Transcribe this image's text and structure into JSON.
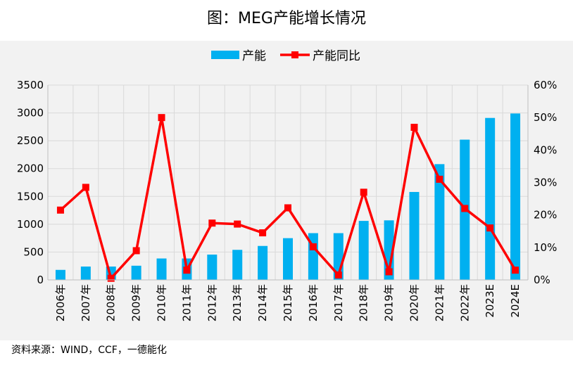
{
  "title": "图：MEG产能增长情况",
  "source": "资料来源：WIND，CCF，一德能化",
  "colors": {
    "bar": "#00b0f0",
    "line": "#ff0000",
    "grid": "#d9d9d9",
    "panel": "#f2f2f2"
  },
  "chart_data": {
    "type": "bar+line",
    "categories": [
      "2006年",
      "2007年",
      "2008年",
      "2009年",
      "2010年",
      "2011年",
      "2012年",
      "2013年",
      "2014年",
      "2015年",
      "2016年",
      "2017年",
      "2018年",
      "2019年",
      "2020年",
      "2021年",
      "2022年",
      "2023E",
      "2024E"
    ],
    "series": [
      {
        "name": "产能",
        "type": "bar",
        "axis": "left",
        "values": [
          180,
          240,
          240,
          255,
          385,
          385,
          455,
          540,
          610,
          750,
          840,
          840,
          1060,
          1070,
          1580,
          2080,
          2520,
          2910,
          2990
        ]
      },
      {
        "name": "产能同比",
        "type": "line",
        "axis": "right",
        "values": [
          0.215,
          0.285,
          0.005,
          0.09,
          0.5,
          0.03,
          0.175,
          0.172,
          0.145,
          0.222,
          0.102,
          0.015,
          0.27,
          0.025,
          0.47,
          0.31,
          0.22,
          0.16,
          0.03
        ]
      }
    ],
    "y_left": {
      "min": 0,
      "max": 3500,
      "ticks": [
        "0",
        "500",
        "1000",
        "1500",
        "2000",
        "2500",
        "3000",
        "3500"
      ]
    },
    "y_right": {
      "min": 0,
      "max": 0.6,
      "ticks": [
        "0%",
        "10%",
        "20%",
        "30%",
        "40%",
        "50%",
        "60%"
      ]
    },
    "legend": {
      "position": "top-center",
      "items": [
        "产能",
        "产能同比"
      ]
    },
    "grid": true
  }
}
